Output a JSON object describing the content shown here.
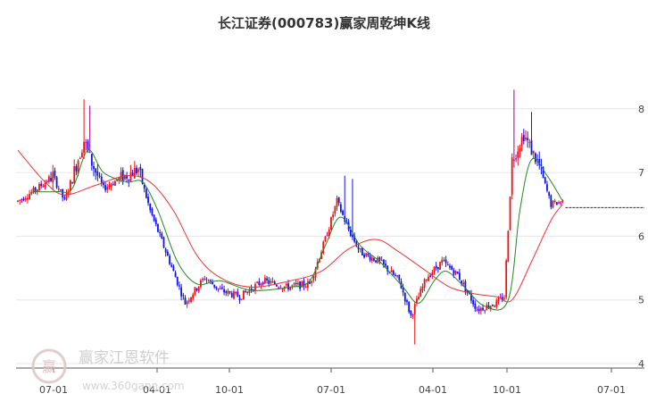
{
  "chart_data": {
    "type": "candlestick",
    "title": "长江证券(000783)赢家周乾坤K线",
    "xlabel": "",
    "ylabel": "",
    "ylim": [
      4,
      8.5
    ],
    "y_ticks": [
      "4",
      "5",
      "6",
      "7",
      "8"
    ],
    "x_ticks": [
      "07-01",
      "04-01",
      "10-01",
      "07-01",
      "04-01",
      "10-01",
      "07-01"
    ],
    "grid": true,
    "colors": {
      "up": "#ee1111",
      "down": "#1111ee",
      "flat": "#990099",
      "ma_short": "#228822",
      "ma_long": "#ee3333",
      "last_price_line": "#333333"
    },
    "anchors": [
      {
        "i": 0,
        "p": 6.55
      },
      {
        "i": 10,
        "p": 6.75
      },
      {
        "i": 18,
        "p": 6.95
      },
      {
        "i": 24,
        "p": 6.55
      },
      {
        "i": 34,
        "p": 7.5
      },
      {
        "i": 38,
        "p": 7.15
      },
      {
        "i": 44,
        "p": 6.75
      },
      {
        "i": 52,
        "p": 6.9
      },
      {
        "i": 62,
        "p": 7.05
      },
      {
        "i": 68,
        "p": 6.4
      },
      {
        "i": 78,
        "p": 5.6
      },
      {
        "i": 86,
        "p": 4.95
      },
      {
        "i": 96,
        "p": 5.35
      },
      {
        "i": 104,
        "p": 5.15
      },
      {
        "i": 114,
        "p": 5.05
      },
      {
        "i": 126,
        "p": 5.3
      },
      {
        "i": 138,
        "p": 5.2
      },
      {
        "i": 150,
        "p": 5.25
      },
      {
        "i": 158,
        "p": 5.95
      },
      {
        "i": 164,
        "p": 6.55
      },
      {
        "i": 170,
        "p": 6.1
      },
      {
        "i": 176,
        "p": 5.75
      },
      {
        "i": 186,
        "p": 5.6
      },
      {
        "i": 196,
        "p": 5.3
      },
      {
        "i": 202,
        "p": 4.75
      },
      {
        "i": 210,
        "p": 5.35
      },
      {
        "i": 218,
        "p": 5.6
      },
      {
        "i": 226,
        "p": 5.4
      },
      {
        "i": 236,
        "p": 4.85
      },
      {
        "i": 246,
        "p": 4.95
      },
      {
        "i": 250,
        "p": 5.05
      },
      {
        "i": 254,
        "p": 7.2
      },
      {
        "i": 260,
        "p": 7.6
      },
      {
        "i": 268,
        "p": 7.1
      },
      {
        "i": 274,
        "p": 6.5
      },
      {
        "i": 280,
        "p": 6.55
      }
    ],
    "spikes": [
      {
        "i": 34,
        "high": 8.15
      },
      {
        "i": 37,
        "high": 8.05
      },
      {
        "i": 168,
        "high": 6.95
      },
      {
        "i": 172,
        "high": 6.9
      },
      {
        "i": 204,
        "low": 4.3
      },
      {
        "i": 255,
        "high": 8.3
      },
      {
        "i": 264,
        "high": 7.95
      }
    ],
    "ma_short": [
      {
        "i": 8,
        "p": 6.7
      },
      {
        "i": 20,
        "p": 6.7
      },
      {
        "i": 28,
        "p": 6.75
      },
      {
        "i": 36,
        "p": 7.35
      },
      {
        "i": 44,
        "p": 7.0
      },
      {
        "i": 56,
        "p": 6.85
      },
      {
        "i": 64,
        "p": 6.85
      },
      {
        "i": 72,
        "p": 6.4
      },
      {
        "i": 82,
        "p": 5.6
      },
      {
        "i": 92,
        "p": 5.25
      },
      {
        "i": 104,
        "p": 5.3
      },
      {
        "i": 120,
        "p": 5.15
      },
      {
        "i": 140,
        "p": 5.2
      },
      {
        "i": 150,
        "p": 5.3
      },
      {
        "i": 158,
        "p": 5.85
      },
      {
        "i": 166,
        "p": 6.3
      },
      {
        "i": 176,
        "p": 5.85
      },
      {
        "i": 186,
        "p": 5.6
      },
      {
        "i": 198,
        "p": 5.2
      },
      {
        "i": 206,
        "p": 4.95
      },
      {
        "i": 214,
        "p": 5.3
      },
      {
        "i": 220,
        "p": 5.45
      },
      {
        "i": 228,
        "p": 5.25
      },
      {
        "i": 240,
        "p": 4.9
      },
      {
        "i": 252,
        "p": 5.0
      },
      {
        "i": 258,
        "p": 6.4
      },
      {
        "i": 264,
        "p": 7.2
      },
      {
        "i": 272,
        "p": 6.95
      },
      {
        "i": 280,
        "p": 6.55
      }
    ],
    "ma_long": [
      {
        "i": 0,
        "p": 7.35
      },
      {
        "i": 14,
        "p": 6.85
      },
      {
        "i": 24,
        "p": 6.65
      },
      {
        "i": 40,
        "p": 6.8
      },
      {
        "i": 56,
        "p": 6.95
      },
      {
        "i": 68,
        "p": 6.85
      },
      {
        "i": 80,
        "p": 6.4
      },
      {
        "i": 92,
        "p": 5.7
      },
      {
        "i": 104,
        "p": 5.35
      },
      {
        "i": 120,
        "p": 5.2
      },
      {
        "i": 140,
        "p": 5.3
      },
      {
        "i": 156,
        "p": 5.45
      },
      {
        "i": 170,
        "p": 5.8
      },
      {
        "i": 184,
        "p": 5.95
      },
      {
        "i": 196,
        "p": 5.75
      },
      {
        "i": 210,
        "p": 5.45
      },
      {
        "i": 222,
        "p": 5.2
      },
      {
        "i": 234,
        "p": 5.1
      },
      {
        "i": 246,
        "p": 5.05
      },
      {
        "i": 254,
        "p": 5.0
      },
      {
        "i": 264,
        "p": 5.6
      },
      {
        "i": 274,
        "p": 6.25
      },
      {
        "i": 280,
        "p": 6.5
      }
    ],
    "total_bars": 281,
    "last_price": 6.45
  },
  "watermark": {
    "text": "赢家江恩软件",
    "url": "www.360gann.com",
    "logo_glyph": "赢"
  }
}
